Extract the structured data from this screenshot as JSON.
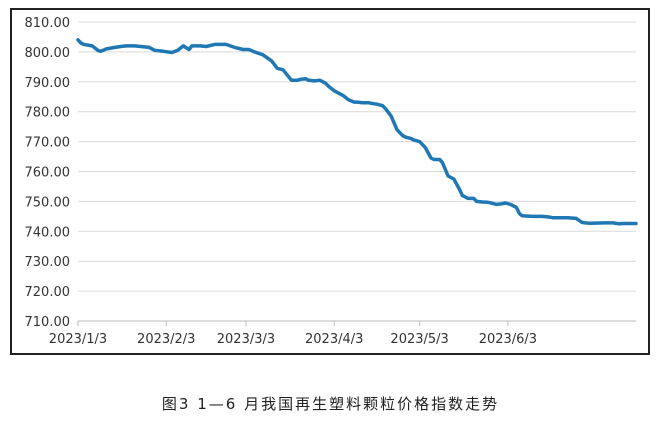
{
  "caption": "图3 1—6 月我国再生塑料颗粒价格指数走势",
  "chart_data": {
    "type": "line",
    "title": "",
    "xlabel": "",
    "ylabel": "",
    "ylim": [
      710,
      810
    ],
    "yticks": [
      "710.00",
      "720.00",
      "730.00",
      "740.00",
      "750.00",
      "760.00",
      "770.00",
      "780.00",
      "790.00",
      "800.00",
      "810.00"
    ],
    "xticks": [
      {
        "label": "2023/1/3",
        "x": 0
      },
      {
        "label": "2023/2/3",
        "x": 31
      },
      {
        "label": "2023/3/3",
        "x": 59
      },
      {
        "label": "2023/4/3",
        "x": 90
      },
      {
        "label": "2023/5/3",
        "x": 120
      },
      {
        "label": "2023/6/3",
        "x": 151
      }
    ],
    "grid": true,
    "line_color": "#1f77b4",
    "series": [
      {
        "name": "",
        "x": [
          0,
          1,
          2,
          5,
          7,
          8,
          10,
          13,
          15,
          17,
          20,
          22,
          25,
          27,
          30,
          33,
          35,
          37,
          39,
          40,
          42,
          43,
          45,
          48,
          50,
          52,
          55,
          58,
          60,
          62,
          65,
          68,
          70,
          72,
          75,
          77,
          78,
          80,
          81,
          83,
          85,
          87,
          88,
          90,
          92,
          93,
          95,
          97,
          98,
          100,
          102,
          103,
          105,
          107,
          108,
          110,
          112,
          114,
          115,
          117,
          118,
          120,
          122,
          124,
          125,
          127,
          128,
          130,
          132,
          134,
          135,
          137,
          139,
          140,
          142,
          144,
          145,
          147,
          149,
          150,
          152,
          154,
          155,
          156,
          158,
          160,
          162,
          163,
          165,
          167,
          168,
          170,
          172,
          175,
          177,
          178,
          180,
          185,
          188,
          190,
          192,
          193,
          196
        ],
        "y": [
          804,
          803,
          802.5,
          802,
          800.5,
          800.2,
          801,
          801.5,
          801.8,
          802,
          802,
          801.8,
          801.5,
          800.5,
          800.2,
          799.8,
          800.5,
          802,
          800.8,
          802,
          802,
          802,
          801.8,
          802.5,
          802.5,
          802.5,
          801.5,
          800.8,
          800.8,
          800,
          799,
          797,
          794.5,
          794,
          790.5,
          790.5,
          790.8,
          791,
          790.5,
          790.3,
          790.5,
          789.5,
          788.5,
          787,
          786,
          785.5,
          784,
          783.2,
          783.2,
          783,
          783,
          782.8,
          782.5,
          782,
          781,
          778.5,
          774,
          772,
          771.5,
          771,
          770.5,
          770,
          768,
          764.5,
          764,
          764,
          763,
          758.5,
          757.5,
          754,
          752,
          751,
          751,
          750,
          749.8,
          749.7,
          749.5,
          749,
          749.2,
          749.5,
          749,
          748,
          746,
          745.2,
          745.1,
          745,
          745,
          745,
          744.8,
          744.5,
          744.5,
          744.5,
          744.5,
          744.3,
          743,
          742.8,
          742.7,
          742.8,
          742.8,
          742.5,
          742.6,
          742.6,
          742.6
        ]
      }
    ]
  }
}
